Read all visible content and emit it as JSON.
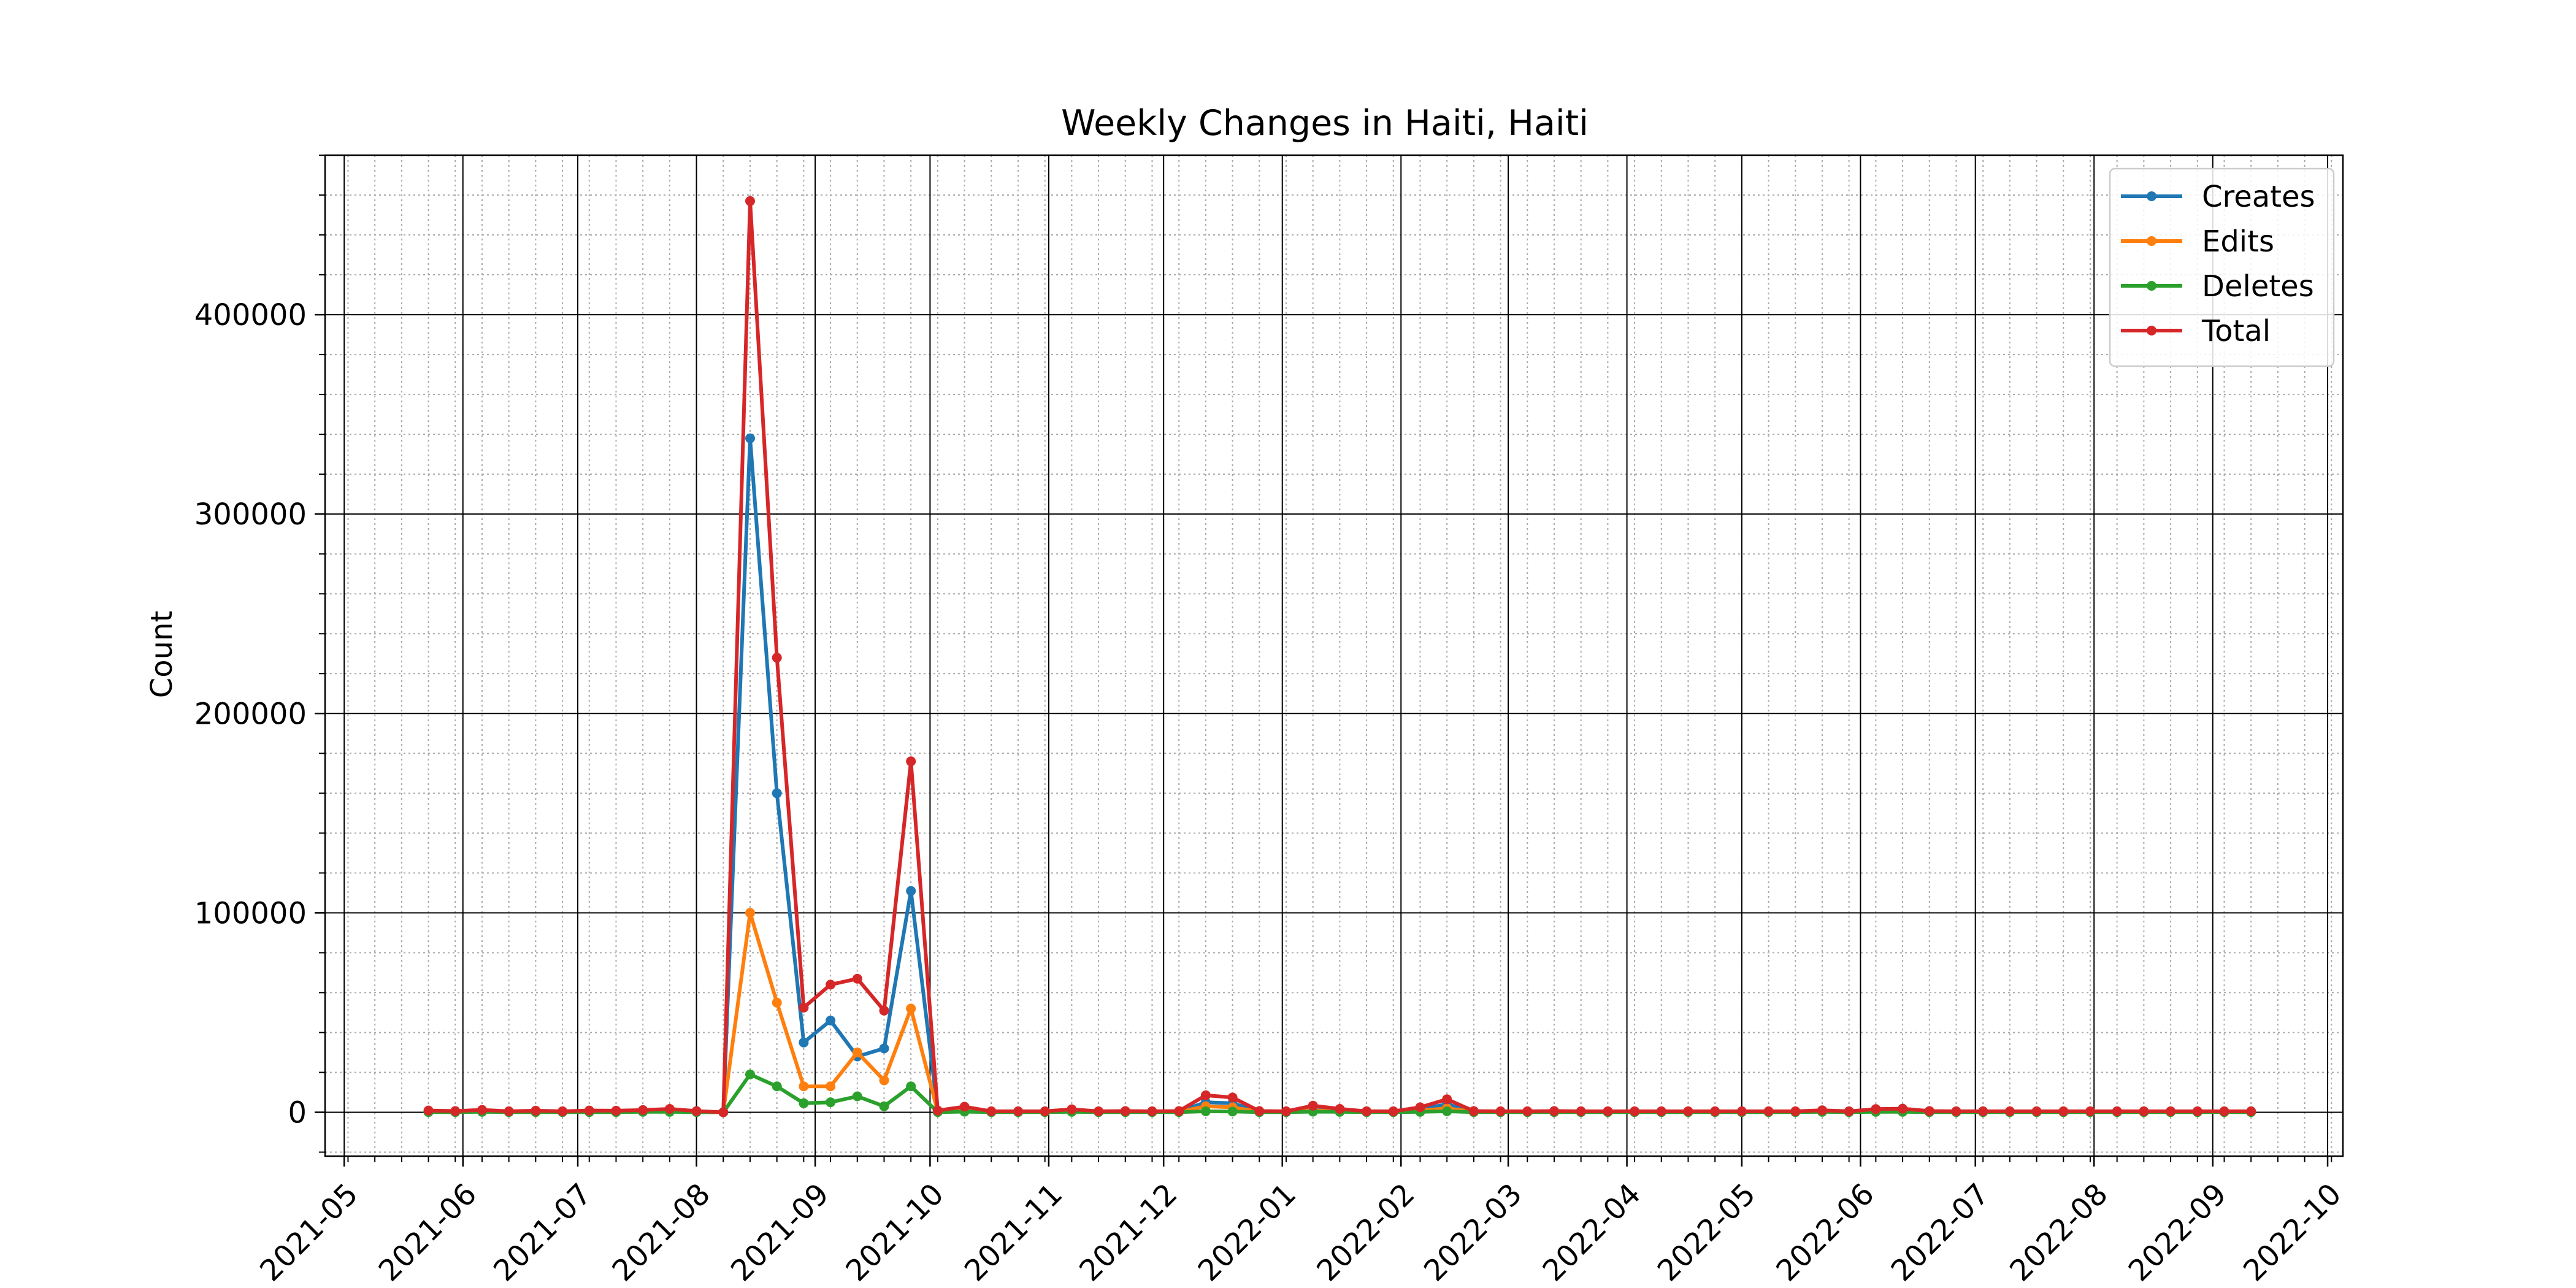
{
  "chart_data": {
    "type": "line",
    "title": "Weekly Changes in Haiti, Haiti",
    "xlabel": "",
    "ylabel": "Count",
    "x_axis_type": "date",
    "xlim": [
      "2021-04-26",
      "2022-10-05"
    ],
    "ylim": [
      -22000,
      480000
    ],
    "x_tick_labels": [
      "2021-05",
      "2021-06",
      "2021-07",
      "2021-08",
      "2021-09",
      "2021-10",
      "2021-11",
      "2021-12",
      "2022-01",
      "2022-02",
      "2022-03",
      "2022-04",
      "2022-05",
      "2022-06",
      "2022-07",
      "2022-08",
      "2022-09",
      "2022-10"
    ],
    "y_ticks": [
      0,
      100000,
      200000,
      300000,
      400000
    ],
    "y_tick_labels": [
      "0",
      "100000",
      "200000",
      "300000",
      "400000"
    ],
    "grid": true,
    "legend_position": "top-right",
    "x": [
      "2021-05-23",
      "2021-05-30",
      "2021-06-06",
      "2021-06-13",
      "2021-06-20",
      "2021-06-27",
      "2021-07-04",
      "2021-07-11",
      "2021-07-18",
      "2021-07-25",
      "2021-08-01",
      "2021-08-08",
      "2021-08-15",
      "2021-08-22",
      "2021-08-29",
      "2021-09-05",
      "2021-09-12",
      "2021-09-19",
      "2021-09-26",
      "2021-10-03",
      "2021-10-10",
      "2021-10-17",
      "2021-10-24",
      "2021-10-31",
      "2021-11-07",
      "2021-11-14",
      "2021-11-21",
      "2021-11-28",
      "2021-12-05",
      "2021-12-12",
      "2021-12-19",
      "2021-12-26",
      "2022-01-02",
      "2022-01-09",
      "2022-01-16",
      "2022-01-23",
      "2022-01-30",
      "2022-02-06",
      "2022-02-13",
      "2022-02-20",
      "2022-02-27",
      "2022-03-06",
      "2022-03-13",
      "2022-03-20",
      "2022-03-27",
      "2022-04-03",
      "2022-04-10",
      "2022-04-17",
      "2022-04-24",
      "2022-05-01",
      "2022-05-08",
      "2022-05-15",
      "2022-05-22",
      "2022-05-29",
      "2022-06-05",
      "2022-06-12",
      "2022-06-19",
      "2022-06-26",
      "2022-07-03",
      "2022-07-10",
      "2022-07-17",
      "2022-07-24",
      "2022-07-31",
      "2022-08-07",
      "2022-08-14",
      "2022-08-21",
      "2022-08-28",
      "2022-09-04",
      "2022-09-11"
    ],
    "series": [
      {
        "name": "Creates",
        "color": "#1f77b4",
        "values": [
          500,
          300,
          600,
          200,
          400,
          200,
          500,
          400,
          500,
          900,
          300,
          0,
          338000,
          160000,
          35000,
          46000,
          28000,
          32000,
          111000,
          500,
          1500,
          200,
          200,
          200,
          800,
          200,
          300,
          200,
          300,
          5000,
          4500,
          300,
          200,
          2000,
          1000,
          200,
          200,
          1500,
          4000,
          300,
          200,
          200,
          300,
          200,
          200,
          200,
          200,
          200,
          200,
          200,
          200,
          200,
          500,
          200,
          900,
          1000,
          300,
          200,
          200,
          200,
          200,
          200,
          200,
          200,
          200,
          200,
          200,
          200,
          200
        ]
      },
      {
        "name": "Edits",
        "color": "#ff7f0e",
        "values": [
          300,
          200,
          400,
          200,
          300,
          200,
          300,
          300,
          400,
          600,
          200,
          0,
          100000,
          55000,
          13000,
          13000,
          30000,
          16000,
          52000,
          300,
          1000,
          200,
          200,
          200,
          500,
          200,
          200,
          200,
          200,
          3000,
          2500,
          200,
          200,
          1000,
          500,
          200,
          200,
          800,
          2000,
          200,
          200,
          200,
          200,
          200,
          200,
          200,
          200,
          200,
          200,
          200,
          200,
          200,
          300,
          200,
          500,
          600,
          200,
          200,
          200,
          200,
          200,
          200,
          200,
          200,
          200,
          200,
          200,
          200,
          200
        ]
      },
      {
        "name": "Deletes",
        "color": "#2ca02c",
        "values": [
          100,
          100,
          200,
          100,
          100,
          100,
          100,
          100,
          200,
          200,
          100,
          0,
          19000,
          13000,
          4500,
          5000,
          8000,
          3000,
          13000,
          100,
          300,
          100,
          100,
          100,
          200,
          100,
          100,
          100,
          100,
          500,
          400,
          100,
          100,
          300,
          200,
          100,
          100,
          200,
          500,
          100,
          100,
          100,
          100,
          100,
          100,
          100,
          100,
          100,
          100,
          100,
          100,
          100,
          200,
          100,
          200,
          200,
          100,
          100,
          100,
          100,
          100,
          100,
          100,
          100,
          100,
          100,
          100,
          100,
          100
        ]
      },
      {
        "name": "Total",
        "color": "#d62728",
        "values": [
          900,
          600,
          1200,
          500,
          800,
          500,
          900,
          800,
          1100,
          1700,
          600,
          0,
          457000,
          228000,
          52500,
          64000,
          67000,
          51000,
          176000,
          900,
          2800,
          500,
          500,
          500,
          1500,
          500,
          600,
          500,
          600,
          8500,
          7400,
          600,
          500,
          3300,
          1700,
          500,
          500,
          2500,
          6500,
          600,
          500,
          500,
          600,
          500,
          500,
          500,
          500,
          500,
          500,
          500,
          500,
          500,
          1000,
          500,
          1600,
          1800,
          600,
          500,
          500,
          500,
          500,
          500,
          500,
          500,
          500,
          500,
          500,
          500,
          500
        ]
      }
    ]
  }
}
